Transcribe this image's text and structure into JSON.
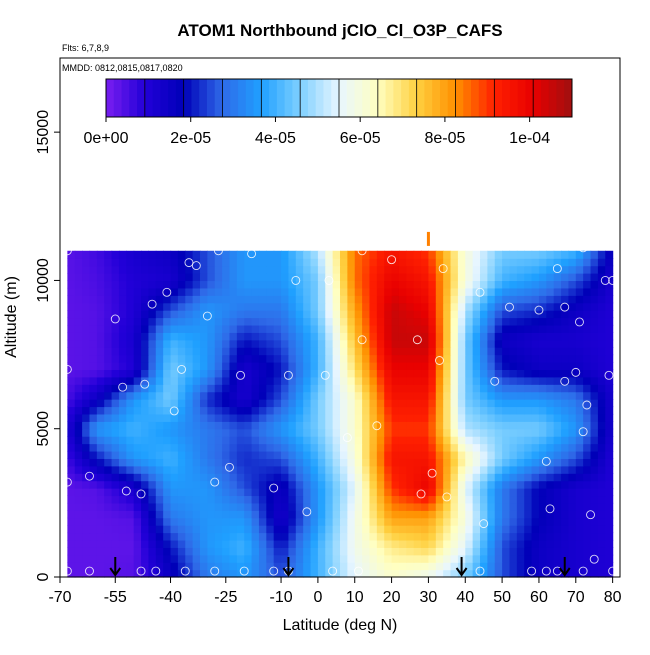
{
  "chart_data": {
    "type": "heatmap",
    "title": "ATOM1 Northbound jClO_Cl_O3P_CAFS",
    "flights_label": "Flts: 6,7,8,9",
    "dates_label": "MMDD: 0812,0815,0817,0820",
    "xlabel": "Latitude (deg N)",
    "ylabel": "Altitude (m)",
    "xlim": [
      -70,
      82
    ],
    "ylim": [
      0,
      17500
    ],
    "x_ticks": [
      -70,
      -55,
      -40,
      -25,
      -10,
      0,
      10,
      20,
      30,
      40,
      50,
      60,
      70,
      80
    ],
    "x_tick_labels": [
      "-70",
      "-55",
      "-40",
      "-25",
      "-10",
      "0",
      "10",
      "20",
      "30",
      "40",
      "50",
      "60",
      "70",
      "80"
    ],
    "y_ticks": [
      0,
      5000,
      10000,
      15000
    ],
    "y_tick_labels": [
      "0",
      "5000",
      "10000",
      "15000"
    ],
    "colorbar": {
      "min": 0,
      "max": 0.00011,
      "ticks": [
        0,
        2e-05,
        4e-05,
        6e-05,
        8e-05,
        0.0001
      ],
      "tick_labels": [
        "0e+00",
        "2e-05",
        "4e-05",
        "6e-05",
        "8e-05",
        "1e-04"
      ],
      "colors": [
        "#7a1ef0",
        "#2200d8",
        "#0000b8",
        "#2f6ae8",
        "#1fa0ff",
        "#7fd0ff",
        "#e8f6ff",
        "#ffffc0",
        "#ffd040",
        "#ff9000",
        "#ff2000",
        "#e80000",
        "#a01010"
      ]
    },
    "grid_x": [
      -70,
      -60,
      -50,
      -40,
      -30,
      -20,
      -10,
      0,
      10,
      20,
      30,
      40,
      50,
      60,
      70,
      80
    ],
    "grid_y": [
      0,
      1000,
      2000,
      3000,
      4000,
      5000,
      6000,
      7000,
      8000,
      9000,
      10000,
      11000
    ],
    "grid_values": [
      [
        3e-06,
        3e-06,
        4e-06,
        1.5e-05,
        3e-05,
        3.5e-05,
        2.5e-05,
        4e-05,
        5.5e-05,
        6.2e-05,
        5.7e-05,
        4.5e-05,
        2.5e-05,
        1.5e-05,
        1.2e-05,
        1e-05
      ],
      [
        3e-06,
        3e-06,
        3e-06,
        2e-05,
        3.5e-05,
        4e-05,
        2e-05,
        4e-05,
        5.8e-05,
        6.8e-05,
        7.2e-05,
        5.5e-05,
        2.5e-05,
        1.5e-05,
        1.2e-05,
        1e-05
      ],
      [
        3e-06,
        3e-06,
        4e-06,
        3e-05,
        3.5e-05,
        3.5e-05,
        1.2e-05,
        3.5e-05,
        5.8e-05,
        8e-05,
        8e-05,
        6e-05,
        3e-05,
        1.8e-05,
        1.2e-05,
        1e-05
      ],
      [
        3e-06,
        4e-06,
        1.2e-05,
        3.5e-05,
        3.5e-05,
        2.5e-05,
        1.5e-05,
        3.5e-05,
        5.5e-05,
        9e-05,
        0.0001,
        5.5e-05,
        3e-05,
        1.8e-05,
        1.2e-05,
        1e-05
      ],
      [
        3e-06,
        2e-05,
        3.5e-05,
        4e-05,
        3e-05,
        2.2e-05,
        2.5e-05,
        4e-05,
        6e-05,
        9.5e-05,
        9.5e-05,
        6.5e-05,
        4.5e-05,
        3.5e-05,
        2.5e-05,
        1e-05
      ],
      [
        4e-06,
        3.5e-05,
        4e-05,
        3.5e-05,
        3e-05,
        2.5e-05,
        3.5e-05,
        4.5e-05,
        6.2e-05,
        9e-05,
        9e-05,
        5e-05,
        4.5e-05,
        4.5e-05,
        3.5e-05,
        1.2e-05
      ],
      [
        3e-06,
        1.5e-05,
        3.5e-05,
        4.5e-05,
        2.2e-05,
        1.2e-05,
        2.5e-05,
        4.5e-05,
        6.2e-05,
        9.5e-05,
        9.5e-05,
        4.5e-05,
        3.5e-05,
        3.5e-05,
        3e-05,
        1.2e-05
      ],
      [
        3e-06,
        4e-06,
        1e-05,
        4.5e-05,
        3.5e-05,
        1.2e-05,
        2e-05,
        4e-05,
        7e-05,
        0.0001,
        0.0001,
        4.5e-05,
        2e-05,
        1.5e-05,
        1.5e-05,
        1e-05
      ],
      [
        3e-06,
        4e-06,
        1.2e-05,
        4e-05,
        3.5e-05,
        2e-05,
        2.5e-05,
        4e-05,
        7.5e-05,
        0.000105,
        0.000105,
        4.5e-05,
        1.5e-05,
        1.2e-05,
        1.2e-05,
        1e-05
      ],
      [
        3e-06,
        4e-06,
        1e-05,
        2.5e-05,
        3.5e-05,
        3e-05,
        3e-05,
        4.5e-05,
        8e-05,
        0.000105,
        0.0001,
        5e-05,
        2.5e-05,
        2.2e-05,
        1.5e-05,
        1e-05
      ],
      [
        3e-06,
        5e-06,
        1e-05,
        1.2e-05,
        2.5e-05,
        3.5e-05,
        3.5e-05,
        4.5e-05,
        8.5e-05,
        0.0001,
        9.5e-05,
        6e-05,
        4e-05,
        3.5e-05,
        2.5e-05,
        1.2e-05
      ],
      [
        3e-06,
        6e-06,
        1.2e-05,
        1.5e-05,
        2.5e-05,
        3.5e-05,
        3.5e-05,
        5e-05,
        8.5e-05,
        9.5e-05,
        9e-05,
        6e-05,
        4.5e-05,
        4.5e-05,
        4e-05,
        1.5e-05
      ]
    ],
    "data_x_range": [
      -68,
      80
    ],
    "data_alt_top": 11000,
    "sample_points": [
      [
        -68,
        11000
      ],
      [
        -68,
        7000
      ],
      [
        -68,
        3200
      ],
      [
        -62,
        3400
      ],
      [
        -55,
        8700
      ],
      [
        -53,
        6400
      ],
      [
        -52,
        2900
      ],
      [
        -48,
        2800
      ],
      [
        -47,
        6500
      ],
      [
        -45,
        9200
      ],
      [
        -41,
        9600
      ],
      [
        -39,
        5600
      ],
      [
        -37,
        7000
      ],
      [
        -35,
        10600
      ],
      [
        -33,
        10500
      ],
      [
        -30,
        8800
      ],
      [
        -28,
        3200
      ],
      [
        -27,
        11000
      ],
      [
        -24,
        3700
      ],
      [
        -21,
        6800
      ],
      [
        -18,
        10900
      ],
      [
        -15,
        11200
      ],
      [
        -12,
        3000
      ],
      [
        -8,
        6800
      ],
      [
        -6,
        10000
      ],
      [
        -3,
        2200
      ],
      [
        2,
        6800
      ],
      [
        3,
        10000
      ],
      [
        8,
        4700
      ],
      [
        12,
        11000
      ],
      [
        12,
        8000
      ],
      [
        16,
        5100
      ],
      [
        20,
        10700
      ],
      [
        27,
        8000
      ],
      [
        28,
        2800
      ],
      [
        31,
        3500
      ],
      [
        33,
        7300
      ],
      [
        34,
        10400
      ],
      [
        35,
        2700
      ],
      [
        44,
        9600
      ],
      [
        45,
        1800
      ],
      [
        48,
        6600
      ],
      [
        52,
        9100
      ],
      [
        60,
        9000
      ],
      [
        62,
        3900
      ],
      [
        63,
        2300
      ],
      [
        65,
        10400
      ],
      [
        67,
        6600
      ],
      [
        67,
        9100
      ],
      [
        70,
        6900
      ],
      [
        71,
        8600
      ],
      [
        72,
        11100
      ],
      [
        72,
        4900
      ],
      [
        73,
        5800
      ],
      [
        74,
        2100
      ],
      [
        75,
        600
      ],
      [
        78,
        10000
      ],
      [
        79,
        6800
      ],
      [
        80,
        10000
      ],
      [
        -68,
        200
      ],
      [
        -62,
        200
      ],
      [
        -48,
        200
      ],
      [
        -44,
        200
      ],
      [
        -36,
        200
      ],
      [
        -28,
        200
      ],
      [
        -20,
        200
      ],
      [
        -12,
        200
      ],
      [
        -8,
        200
      ],
      [
        4,
        200
      ],
      [
        11,
        200
      ],
      [
        44,
        200
      ],
      [
        58,
        200
      ],
      [
        62,
        200
      ],
      [
        65,
        200
      ],
      [
        72,
        200
      ],
      [
        80,
        200
      ]
    ],
    "arrow_latitudes": [
      -55,
      -8,
      39,
      67
    ],
    "marker": {
      "lat": 30,
      "alt": 11400
    }
  }
}
